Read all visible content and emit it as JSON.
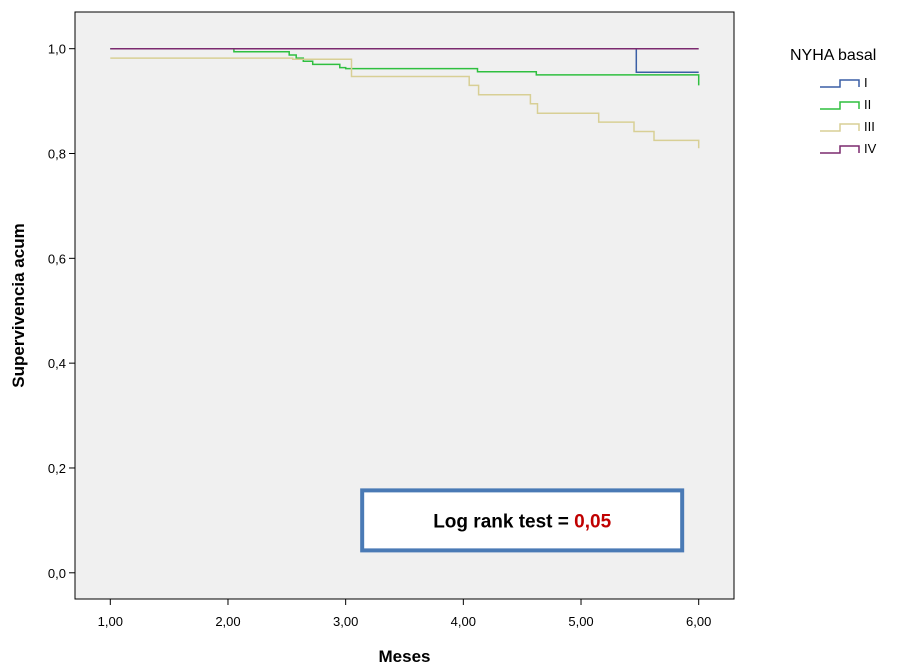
{
  "chart_data": {
    "type": "line",
    "step": true,
    "xlabel": "Meses",
    "ylabel": "Supervivencia acum",
    "xlim": [
      0.7,
      6.3
    ],
    "ylim": [
      -0.05,
      1.07
    ],
    "xticks": [
      1,
      2,
      3,
      4,
      5,
      6
    ],
    "xtick_labels": [
      "1,00",
      "2,00",
      "3,00",
      "4,00",
      "5,00",
      "6,00"
    ],
    "yticks": [
      0,
      0.2,
      0.4,
      0.6,
      0.8,
      1.0
    ],
    "ytick_labels": [
      "0,0",
      "0,2",
      "0,4",
      "0,6",
      "0,8",
      "1,0"
    ],
    "grid": false,
    "background_color": "#f0f0f0",
    "legend": {
      "title": "NYHA basal",
      "position": "top-right-outside"
    },
    "series": [
      {
        "name": "I",
        "color": "#3a5fa5",
        "points": [
          [
            1.0,
            1.0
          ],
          [
            5.47,
            1.0
          ],
          [
            5.47,
            0.955
          ],
          [
            6.0,
            0.955
          ]
        ]
      },
      {
        "name": "II",
        "color": "#2fbf3f",
        "points": [
          [
            1.0,
            1.0
          ],
          [
            2.05,
            1.0
          ],
          [
            2.05,
            0.994
          ],
          [
            2.52,
            0.994
          ],
          [
            2.52,
            0.988
          ],
          [
            2.58,
            0.988
          ],
          [
            2.58,
            0.982
          ],
          [
            2.64,
            0.982
          ],
          [
            2.64,
            0.976
          ],
          [
            2.72,
            0.976
          ],
          [
            2.72,
            0.97
          ],
          [
            2.95,
            0.97
          ],
          [
            2.95,
            0.964
          ],
          [
            3.0,
            0.964
          ],
          [
            3.0,
            0.962
          ],
          [
            4.12,
            0.962
          ],
          [
            4.12,
            0.956
          ],
          [
            4.62,
            0.956
          ],
          [
            4.62,
            0.95
          ],
          [
            6.0,
            0.95
          ],
          [
            6.0,
            0.93
          ]
        ]
      },
      {
        "name": "III",
        "color": "#d8cf95",
        "points": [
          [
            1.0,
            0.982
          ],
          [
            2.55,
            0.982
          ],
          [
            2.55,
            0.98
          ],
          [
            3.05,
            0.98
          ],
          [
            3.05,
            0.947
          ],
          [
            4.05,
            0.947
          ],
          [
            4.05,
            0.93
          ],
          [
            4.13,
            0.93
          ],
          [
            4.13,
            0.912
          ],
          [
            4.57,
            0.912
          ],
          [
            4.57,
            0.895
          ],
          [
            4.63,
            0.895
          ],
          [
            4.63,
            0.877
          ],
          [
            5.15,
            0.877
          ],
          [
            5.15,
            0.86
          ],
          [
            5.45,
            0.86
          ],
          [
            5.45,
            0.842
          ],
          [
            5.62,
            0.842
          ],
          [
            5.62,
            0.825
          ],
          [
            6.0,
            0.825
          ],
          [
            6.0,
            0.81
          ]
        ]
      },
      {
        "name": "IV",
        "color": "#7b2a6f",
        "points": [
          [
            1.0,
            1.0
          ],
          [
            6.0,
            1.0
          ]
        ]
      }
    ],
    "annotations": [
      {
        "text_prefix": "Log rank test = ",
        "text_value": "0,05",
        "value_color": "#c00000",
        "border_color": "#4a7ab5",
        "x": 4.5,
        "y": 0.1
      }
    ]
  }
}
